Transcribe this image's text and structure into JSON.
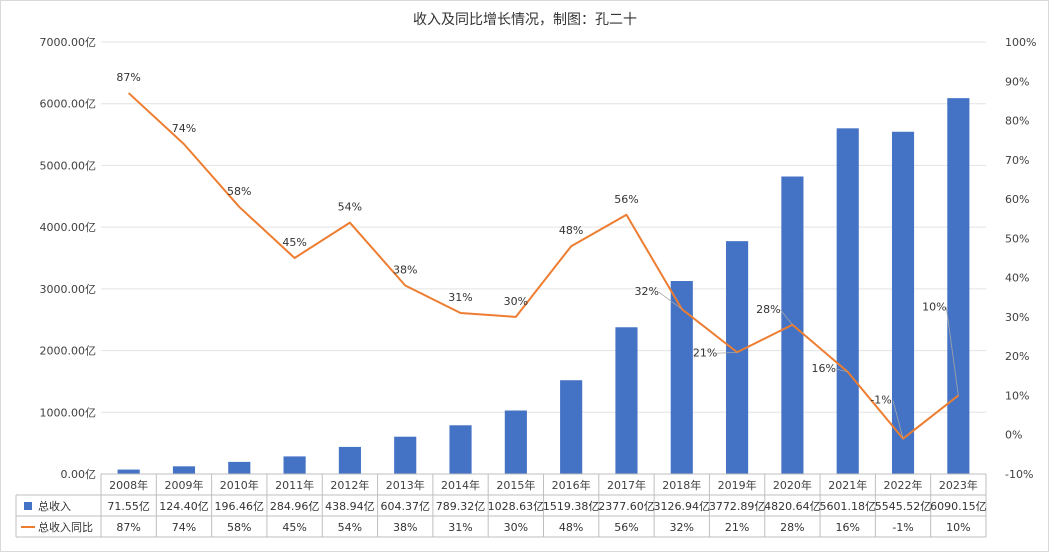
{
  "chart_data": {
    "type": "bar",
    "title": "收入及同比增长情况，制图：孔二十",
    "categories": [
      "2008年",
      "2009年",
      "2010年",
      "2011年",
      "2012年",
      "2013年",
      "2014年",
      "2015年",
      "2016年",
      "2017年",
      "2018年",
      "2019年",
      "2020年",
      "2021年",
      "2022年",
      "2023年"
    ],
    "series": [
      {
        "name": "总收入",
        "chart_type": "bar",
        "axis": "left",
        "color": "#4472c4",
        "values": [
          71.55,
          124.4,
          196.46,
          284.96,
          438.94,
          604.37,
          789.32,
          1028.63,
          1519.38,
          2377.6,
          3126.94,
          3772.89,
          4820.64,
          5601.18,
          5545.52,
          6090.15
        ],
        "table_labels": [
          "71.55亿",
          "124.40亿",
          "196.46亿",
          "284.96亿",
          "438.94亿",
          "604.37亿",
          "789.32亿",
          "1028.63亿",
          "1519.38亿",
          "2377.60亿",
          "3126.94亿",
          "3772.89亿",
          "4820.64亿",
          "5601.18亿",
          "5545.52亿",
          "6090.15亿"
        ]
      },
      {
        "name": "总收入同比",
        "chart_type": "line",
        "axis": "right",
        "color": "#ed7d31",
        "values": [
          87,
          74,
          58,
          45,
          54,
          38,
          31,
          30,
          48,
          56,
          32,
          21,
          28,
          16,
          -1,
          10
        ],
        "labels": [
          "87%",
          "74%",
          "58%",
          "45%",
          "54%",
          "38%",
          "31%",
          "30%",
          "48%",
          "56%",
          "32%",
          "21%",
          "28%",
          "16%",
          "-1%",
          "10%"
        ]
      }
    ],
    "y_left": {
      "ylim": [
        0,
        7000
      ],
      "ticks": [
        "0.00亿",
        "1000.00亿",
        "2000.00亿",
        "3000.00亿",
        "4000.00亿",
        "5000.00亿",
        "6000.00亿",
        "7000.00亿"
      ]
    },
    "y_right": {
      "ylim": [
        -10,
        100
      ],
      "ticks": [
        "-10%",
        "0%",
        "10%",
        "20%",
        "30%",
        "40%",
        "50%",
        "60%",
        "70%",
        "80%",
        "90%",
        "100%"
      ]
    },
    "grid": true,
    "legend": "data-table-bottom"
  }
}
